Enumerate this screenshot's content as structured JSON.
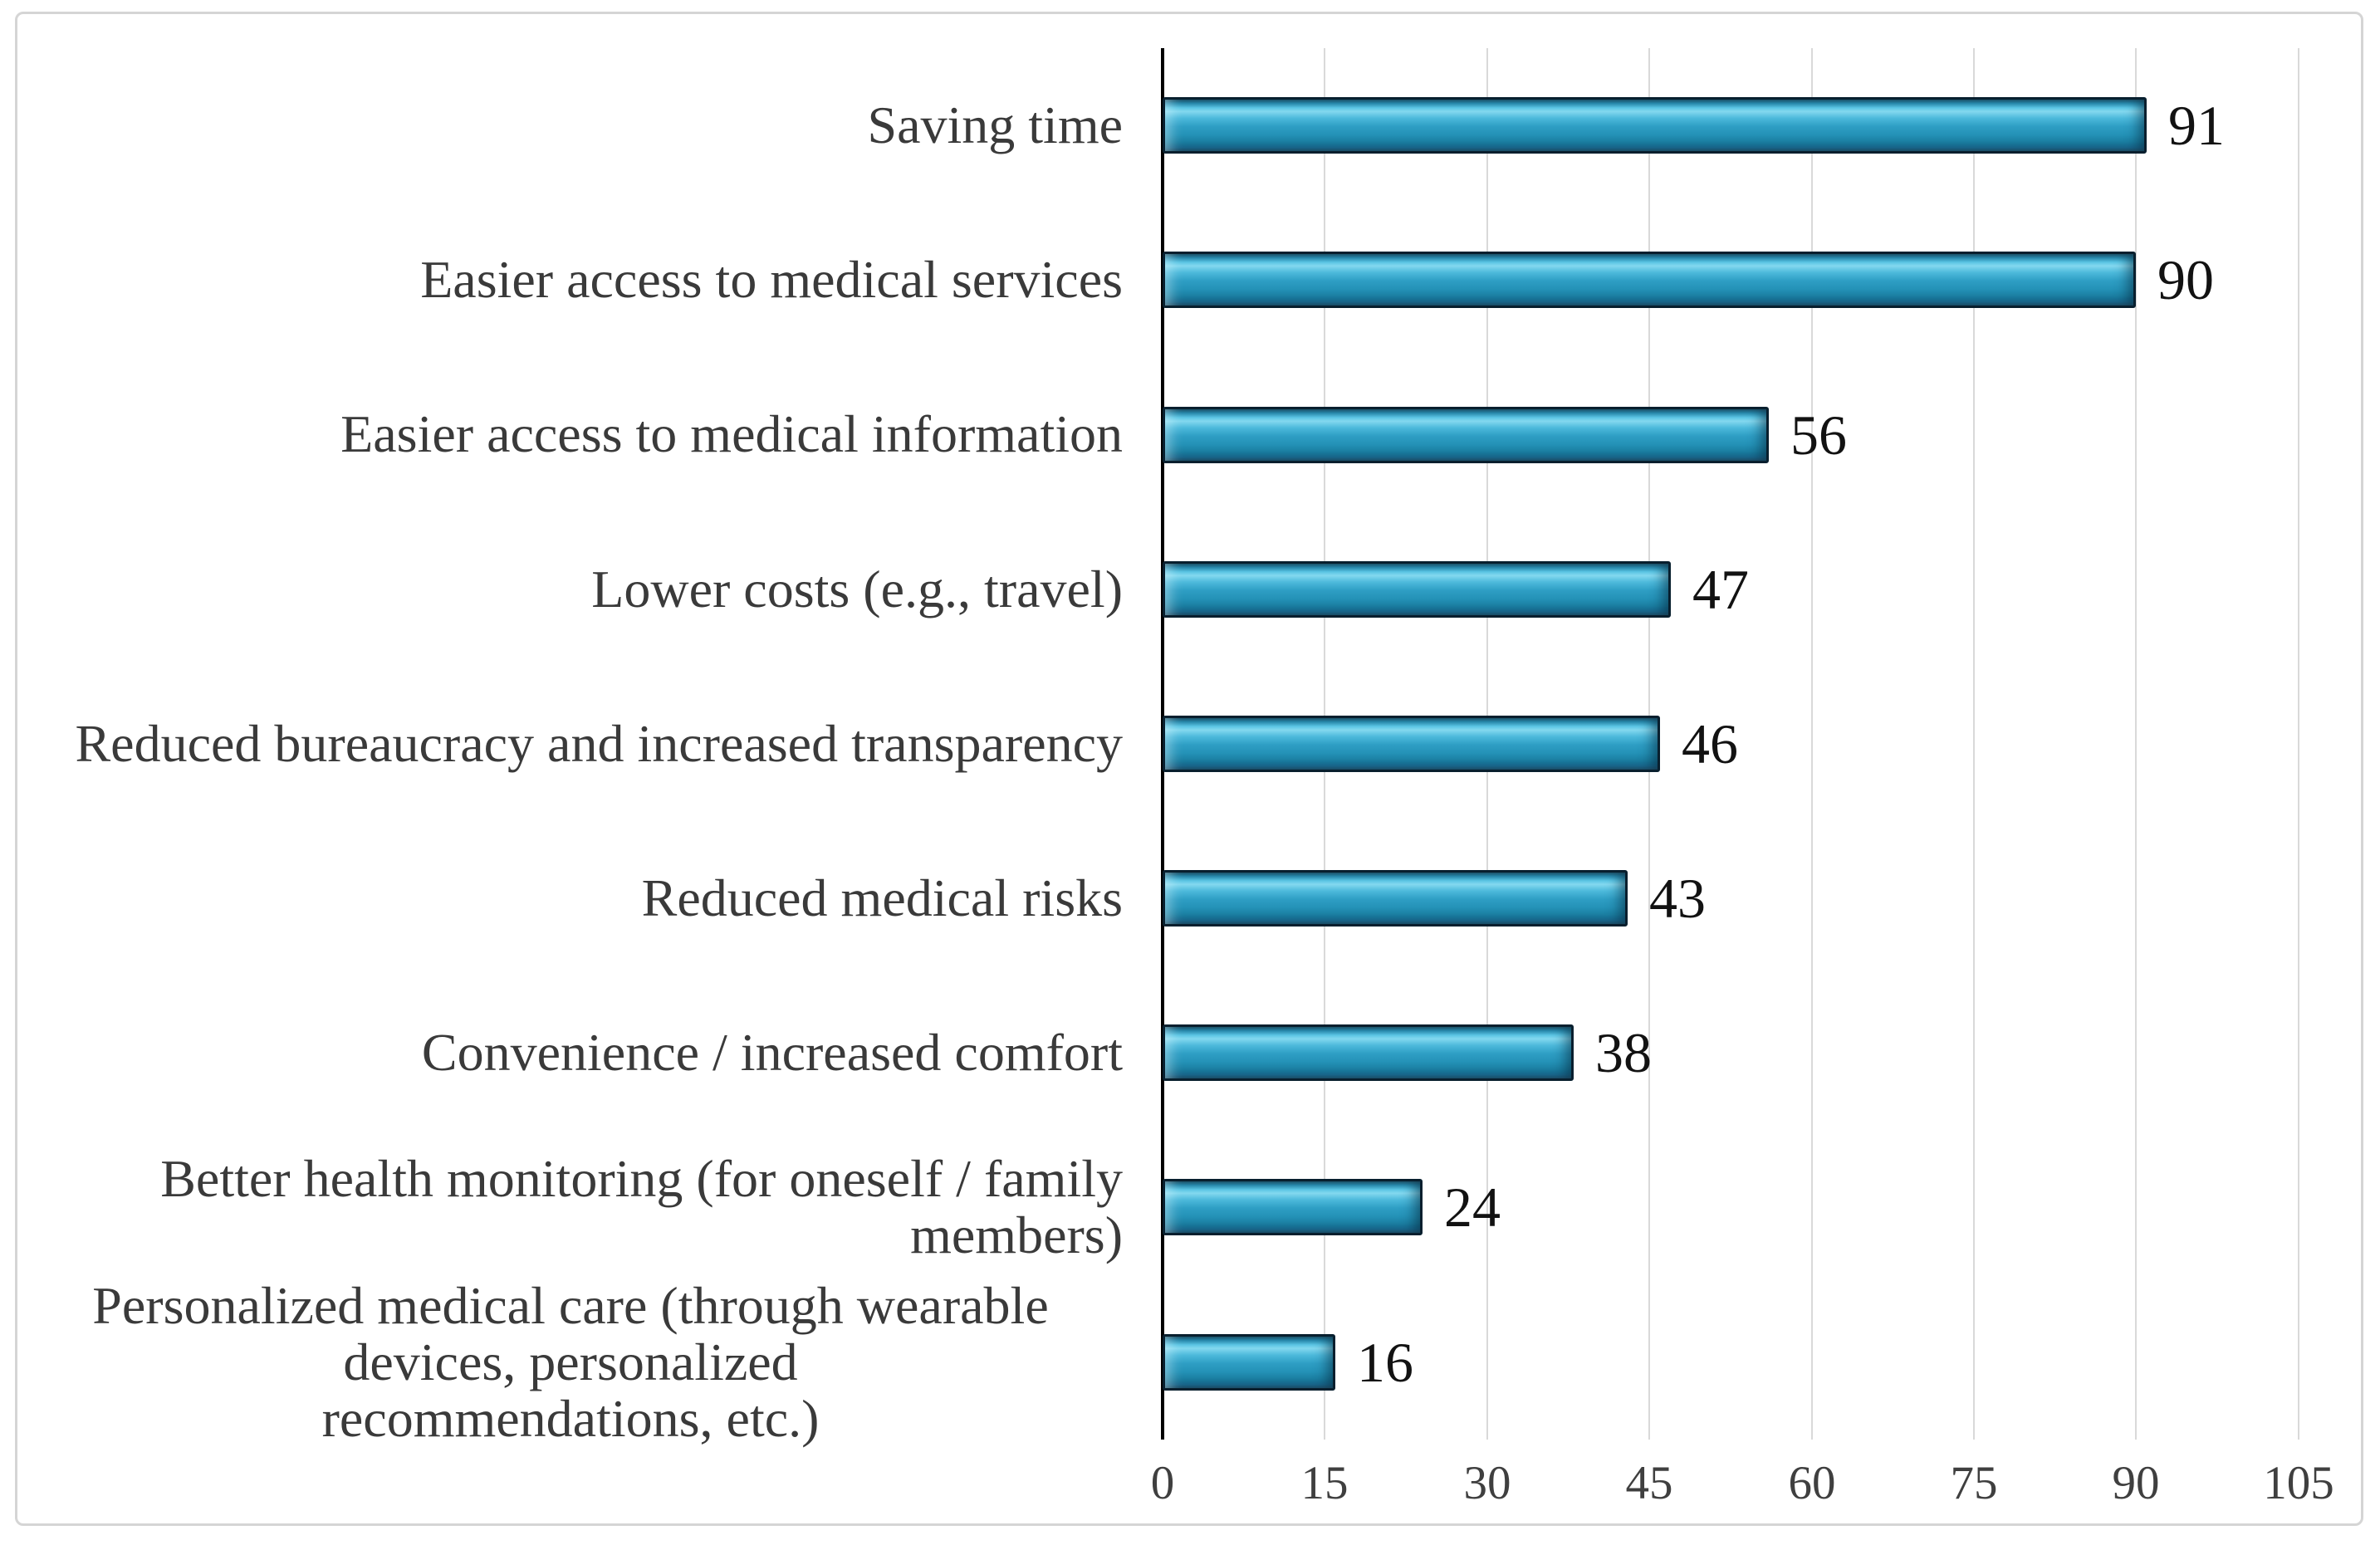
{
  "chart_data": {
    "type": "bar",
    "orientation": "horizontal",
    "title": "",
    "xlabel": "",
    "ylabel": "",
    "categories": [
      "Saving time",
      "Easier access to medical services",
      "Easier access to medical information",
      "Lower costs (e.g., travel)",
      "Reduced bureaucracy and increased transparency",
      "Reduced medical risks",
      "Convenience / increased comfort",
      "Better health monitoring (for oneself / family members)",
      "Personalized medical care (through wearable devices, personalized\nrecommendations, etc.)"
    ],
    "values": [
      91,
      90,
      56,
      47,
      46,
      43,
      38,
      24,
      16
    ],
    "value_labels": [
      "91",
      "90",
      "56",
      "47",
      "46",
      "43",
      "38",
      "24",
      "16"
    ],
    "xlim": [
      0,
      105
    ],
    "x_ticks": [
      0,
      15,
      30,
      45,
      60,
      75,
      90,
      105
    ],
    "x_tick_labels": [
      "0",
      "15",
      "30",
      "45",
      "60",
      "75",
      "90",
      "105"
    ],
    "grid": "vertical-gridlines-on",
    "legend": "none",
    "colors": {
      "bar_fill": "#2e9ec4",
      "bar_highlight": "#83d8ef",
      "bar_shadow": "#0e4460",
      "bar_border": "#081f2e",
      "axis": "#000000",
      "gridline": "#d9d9d9",
      "category_label": "#3a3a3a",
      "tick_label": "#3f3f3f",
      "value_label": "#121212",
      "frame_border": "#d5d5d5",
      "background": "#ffffff"
    }
  }
}
